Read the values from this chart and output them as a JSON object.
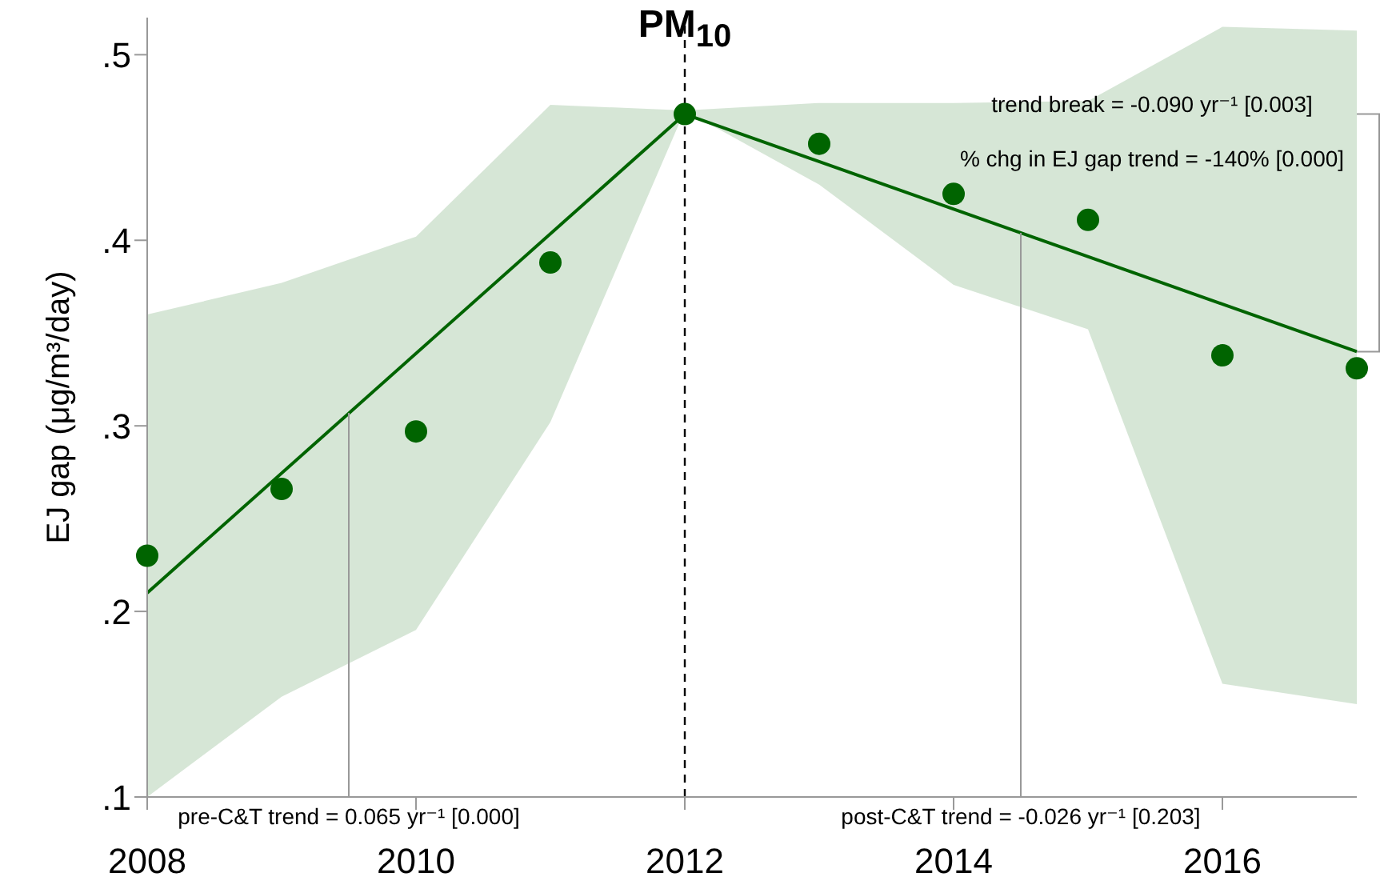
{
  "chart_data": {
    "type": "scatter",
    "title": "PM$_{10}$",
    "ylabel": "EJ gap (μg/m³/day)",
    "x": [
      2008,
      2009,
      2010,
      2011,
      2012,
      2013,
      2014,
      2015,
      2016,
      2017
    ],
    "series": [
      {
        "marker": "circle",
        "color": "#006400",
        "values": [
          0.23,
          0.266,
          0.297,
          0.388,
          0.468,
          0.452,
          0.425,
          0.411,
          0.338,
          0.331
        ],
        "lower": [
          0.1,
          0.154,
          0.19,
          0.302,
          0.47,
          0.43,
          0.376,
          0.352,
          0.161,
          0.15
        ],
        "upper": [
          0.36,
          0.377,
          0.402,
          0.473,
          0.47,
          0.474,
          0.474,
          0.475,
          0.515,
          0.513
        ]
      },
      {
        "type": "line",
        "color": "#006400",
        "x": [
          2008,
          2012
        ],
        "values": [
          0.21,
          0.468
        ]
      },
      {
        "type": "line",
        "color": "#006400",
        "x": [
          2012,
          2017
        ],
        "values": [
          0.468,
          0.34
        ]
      }
    ],
    "xlim": [
      2008,
      2017
    ],
    "xticks": [
      2008,
      2010,
      2012,
      2014,
      2016
    ],
    "ylim": [
      0.1,
      0.52
    ],
    "yticks": [
      {
        "value": 0.1,
        "label": ".1"
      },
      {
        "value": 0.2,
        "label": ".2"
      },
      {
        "value": 0.3,
        "label": ".3"
      },
      {
        "value": 0.4,
        "label": ".4"
      },
      {
        "value": 0.5,
        "label": ".5"
      }
    ],
    "ref_lines": [
      {
        "axis": "x",
        "value": 2012,
        "color": "#000000",
        "line_style": "dashed"
      }
    ],
    "annotations": [
      {
        "text": "pre-C&T trend = 0.065 yr⁻¹ [0.000]",
        "x": 2009.5,
        "y": 0.307
      },
      {
        "text": "post-C&T trend = -0.026 yr⁻¹ [0.203]",
        "x": 2014.5,
        "y": 0.404
      },
      "trend break = -0.090 yr⁻¹ [0.003]",
      "% chg in EJ gap trend = -140% [0.000]"
    ]
  }
}
